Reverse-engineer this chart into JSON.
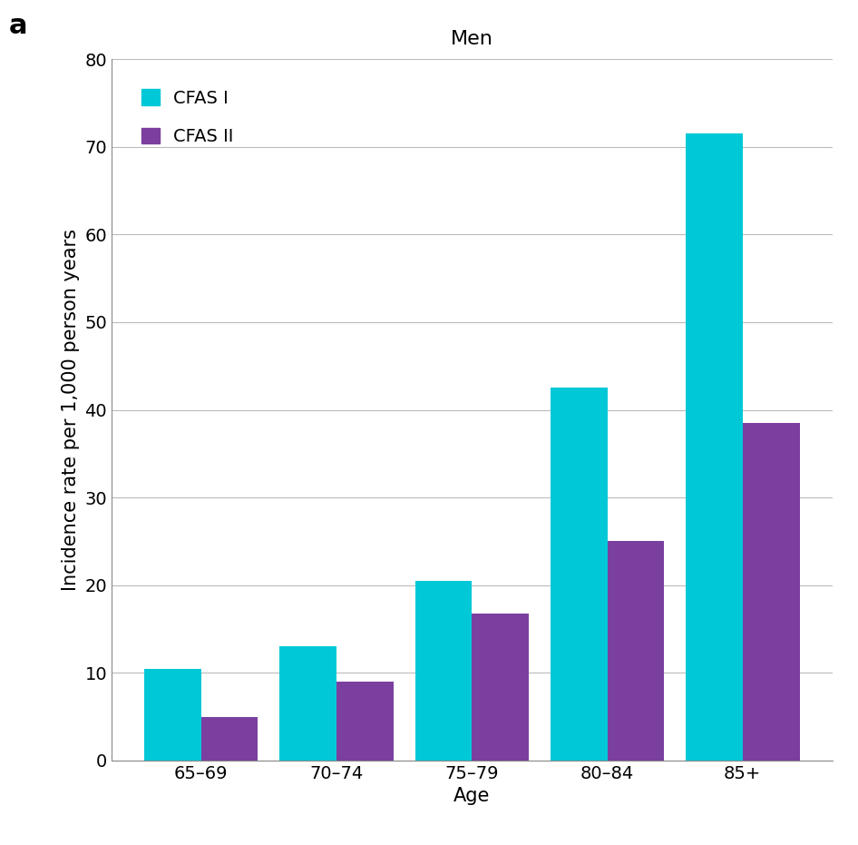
{
  "title": "Men",
  "panel_label": "a",
  "xlabel": "Age",
  "ylabel": "Incidence rate per 1,000 person years",
  "categories": [
    "65–69",
    "70–74",
    "75–79",
    "80–84",
    "85+"
  ],
  "cfas1_values": [
    10.4,
    13.0,
    20.5,
    42.5,
    71.5
  ],
  "cfas2_values": [
    5.0,
    9.0,
    16.8,
    25.0,
    38.5
  ],
  "cfas1_color": "#00C8D7",
  "cfas2_color": "#7B3FA0",
  "ylim": [
    0,
    80
  ],
  "yticks": [
    0,
    10,
    20,
    30,
    40,
    50,
    60,
    70,
    80
  ],
  "legend_labels": [
    "CFAS I",
    "CFAS II"
  ],
  "bar_width": 0.42,
  "background_color": "#ffffff",
  "grid_color": "#bbbbbb",
  "title_fontsize": 16,
  "label_fontsize": 15,
  "tick_fontsize": 14,
  "legend_fontsize": 14,
  "panel_label_fontsize": 22
}
